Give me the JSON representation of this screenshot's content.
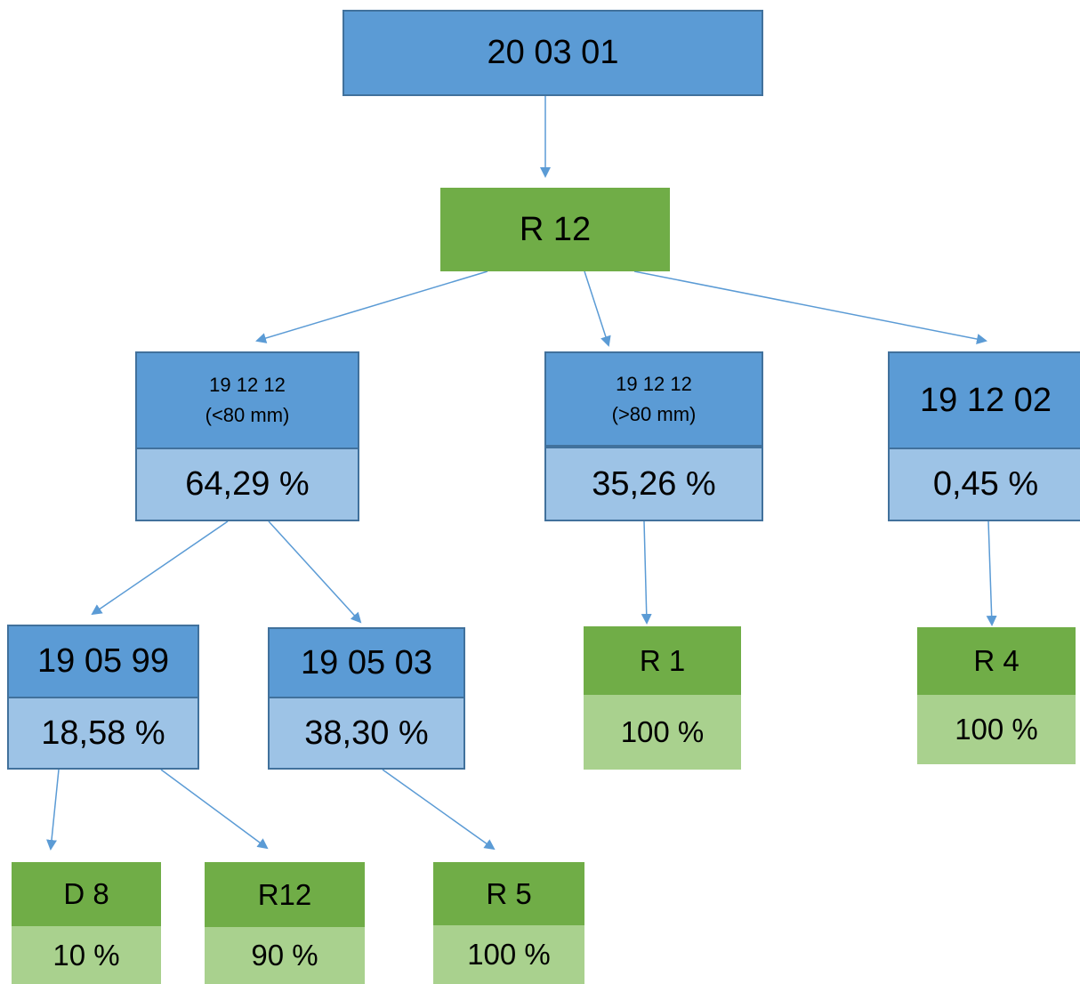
{
  "colors": {
    "code_box": "#5b9bd5",
    "percent_box": "#9dc3e6",
    "operation_box": "#70ad47",
    "operation_percent_box": "#a9d18e",
    "border": "#41719c",
    "arrow": "#5b9bd5"
  },
  "nodes": {
    "root": {
      "code": "20 03 01"
    },
    "r12_top": {
      "code": "R 12"
    },
    "fine": {
      "code": "19 12 12",
      "detail": "(<80 mm)",
      "percent": "64,29 %"
    },
    "coarse": {
      "code": "19 12 12",
      "detail": "(>80 mm)",
      "percent": "35,26 %"
    },
    "metal": {
      "code": "19 12 02",
      "percent": "0,45 %"
    },
    "c190599": {
      "code": "19 05 99",
      "percent": "18,58 %"
    },
    "c190503": {
      "code": "19 05 03",
      "percent": "38,30 %"
    },
    "r1": {
      "code": "R 1",
      "percent": "100 %"
    },
    "r4": {
      "code": "R 4",
      "percent": "100 %"
    },
    "d8": {
      "code": "D 8",
      "percent": "10 %"
    },
    "r12_bottom": {
      "code": "R12",
      "percent": "90 %"
    },
    "r5": {
      "code": "R 5",
      "percent": "100 %"
    }
  }
}
